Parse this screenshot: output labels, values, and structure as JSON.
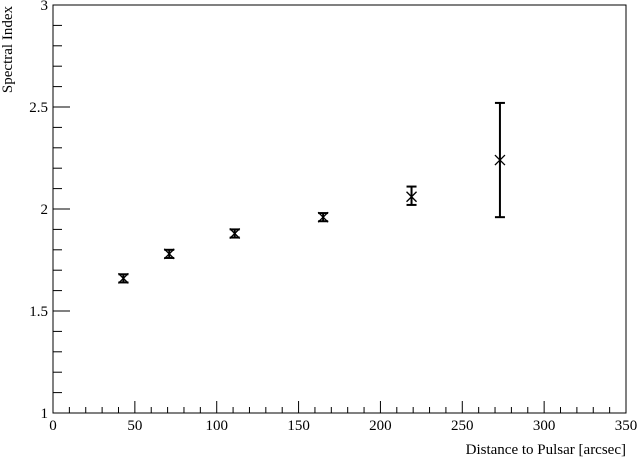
{
  "chart_data": {
    "type": "scatter",
    "title": "",
    "xlabel": "Distance to Pulsar [arcsec]",
    "ylabel": "Spectral Index",
    "xlim": [
      0,
      350
    ],
    "ylim": [
      1,
      3
    ],
    "x_ticks": [
      0,
      50,
      100,
      150,
      200,
      250,
      300,
      350
    ],
    "x_tick_labels": [
      "0",
      "50",
      "100",
      "150",
      "200",
      "250",
      "300",
      "350"
    ],
    "y_ticks": [
      1,
      1.5,
      2,
      2.5,
      3
    ],
    "y_tick_labels": [
      "1",
      "1.5",
      "2",
      "2.5",
      "3"
    ],
    "grid": false,
    "series": [
      {
        "marker": "x",
        "color": "#000000",
        "points": [
          {
            "x": 43,
            "y": 1.66,
            "yerr_low": 0.02,
            "yerr_high": 0.02
          },
          {
            "x": 71,
            "y": 1.78,
            "yerr_low": 0.02,
            "yerr_high": 0.02
          },
          {
            "x": 111,
            "y": 1.88,
            "yerr_low": 0.02,
            "yerr_high": 0.02
          },
          {
            "x": 165,
            "y": 1.96,
            "yerr_low": 0.02,
            "yerr_high": 0.02
          },
          {
            "x": 219,
            "y": 2.06,
            "yerr_low": 0.04,
            "yerr_high": 0.05
          },
          {
            "x": 273,
            "y": 2.24,
            "yerr_low": 0.28,
            "yerr_high": 0.28
          }
        ]
      }
    ]
  }
}
